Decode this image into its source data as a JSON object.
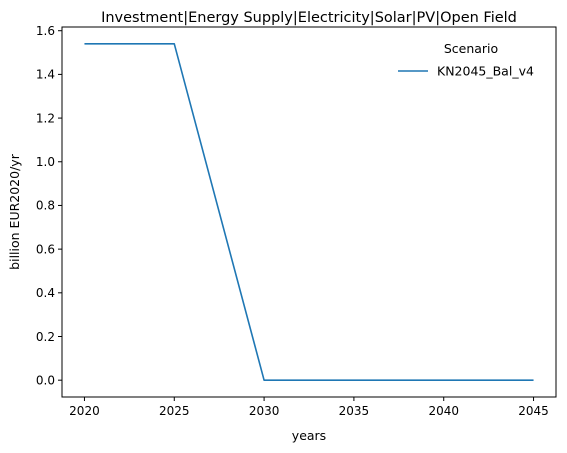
{
  "chart_data": {
    "type": "line",
    "title": "Investment|Energy Supply|Electricity|Solar|PV|Open Field",
    "xlabel": "years",
    "ylabel": "billion EUR2020/yr",
    "x": [
      2020,
      2025,
      2030,
      2035,
      2040,
      2045
    ],
    "xlim": [
      2018.75,
      2046.25
    ],
    "ylim": [
      -0.077,
      1.617
    ],
    "x_ticks": [
      "2020",
      "2025",
      "2030",
      "2035",
      "2040",
      "2045"
    ],
    "y_ticks": [
      "0.0",
      "0.2",
      "0.4",
      "0.6",
      "0.8",
      "1.0",
      "1.2",
      "1.4",
      "1.6"
    ],
    "grid": false,
    "legend": {
      "title": "Scenario",
      "placement": "top-right"
    },
    "series": [
      {
        "name": "KN2045_Bal_v4",
        "color": "#1f77b4",
        "values": [
          1.54,
          1.54,
          0.0,
          0.0,
          0.0,
          0.0
        ]
      }
    ]
  }
}
